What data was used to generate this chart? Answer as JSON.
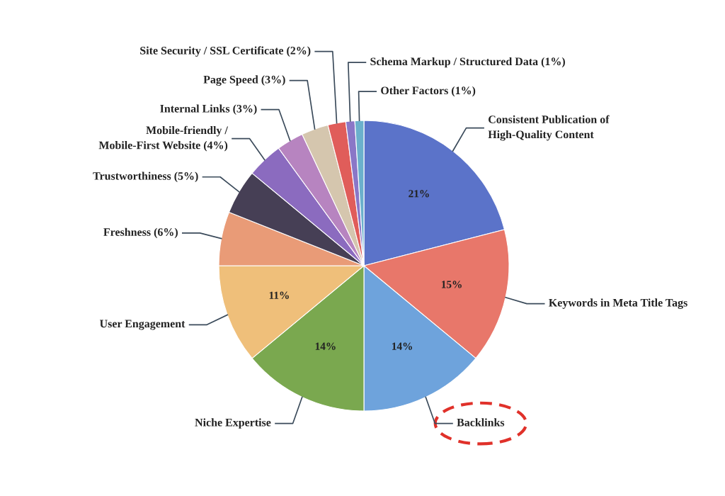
{
  "chart_data": {
    "type": "pie",
    "categories": [
      "Consistent Publication of\nHigh-Quality Content",
      "Keywords in Meta Title Tags",
      "Backlinks",
      "Niche Expertise",
      "User Engagement",
      "Freshness (6%)",
      "Trustworthiness (5%)",
      "Mobile-friendly /\nMobile-First Website (4%)",
      "Internal Links (3%)",
      "Page Speed (3%)",
      "Site Security / SSL Certificate (2%)",
      "Schema Markup / Structured Data (1%)",
      "Other Factors (1%)"
    ],
    "values": [
      21,
      15,
      14,
      14,
      11,
      6,
      5,
      4,
      3,
      3,
      2,
      1,
      1
    ],
    "colors": [
      "#5b73c9",
      "#e8776a",
      "#6ea3dc",
      "#7aa84f",
      "#efbf7a",
      "#e99b77",
      "#463f55",
      "#8b6bbf",
      "#b784c0",
      "#d5c6ae",
      "#e05d5a",
      "#8a77c7",
      "#6bb0cc"
    ],
    "value_labels": [
      "21%",
      "15%",
      "14%",
      "14%",
      "11%",
      null,
      null,
      null,
      null,
      null,
      null,
      null,
      null
    ]
  }
}
